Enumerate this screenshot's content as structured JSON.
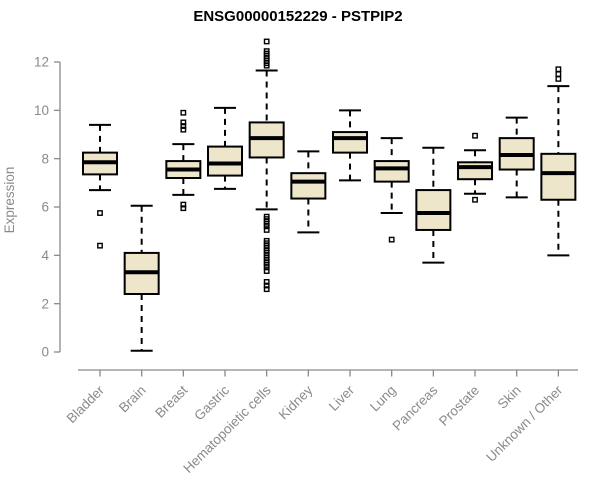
{
  "colors": {
    "box_fill": "#EDE6CA",
    "axis_gray": "#8a8a8a",
    "title_color": "#000000",
    "background": "#ffffff"
  },
  "chart_data": {
    "type": "boxplot",
    "title": "ENSG00000152229 - PSTPIP2",
    "xlabel": "",
    "ylabel": "Expression",
    "ylim": [
      0,
      12
    ],
    "yticks": [
      0,
      2,
      4,
      6,
      8,
      10,
      12
    ],
    "grid": "off",
    "categories": [
      "Bladder",
      "Brain",
      "Breast",
      "Gastric",
      "Hematopoietic cells",
      "Kidney",
      "Liver",
      "Lung",
      "Pancreas",
      "Prostate",
      "Skin",
      "Unknown / Other"
    ],
    "series": [
      {
        "name": "Bladder",
        "low": 6.7,
        "q1": 7.35,
        "median": 7.85,
        "q3": 8.25,
        "high": 9.4,
        "outliers": [
          5.75,
          4.4
        ]
      },
      {
        "name": "Brain",
        "low": 0.05,
        "q1": 2.4,
        "median": 3.3,
        "q3": 4.1,
        "high": 6.05,
        "outliers": []
      },
      {
        "name": "Breast",
        "low": 6.5,
        "q1": 7.2,
        "median": 7.55,
        "q3": 7.9,
        "high": 8.6,
        "outliers": [
          9.9,
          9.5,
          9.35,
          9.2,
          6.1,
          5.95
        ]
      },
      {
        "name": "Gastric",
        "low": 6.75,
        "q1": 7.3,
        "median": 7.8,
        "q3": 8.5,
        "high": 10.1,
        "outliers": []
      },
      {
        "name": "Hematopoietic cells",
        "low": 5.9,
        "q1": 8.05,
        "median": 8.85,
        "q3": 9.5,
        "high": 11.65,
        "outliers": [
          12.85,
          12.45,
          12.35,
          12.25,
          12.15,
          12.05,
          11.95,
          11.85,
          5.6,
          5.5,
          5.4,
          5.3,
          5.2,
          5.05,
          4.6,
          4.5,
          4.4,
          4.3,
          4.2,
          4.1,
          4.0,
          3.9,
          3.8,
          3.7,
          3.6,
          3.5,
          3.35,
          2.9,
          2.75,
          2.6
        ]
      },
      {
        "name": "Kidney",
        "low": 4.95,
        "q1": 6.35,
        "median": 7.05,
        "q3": 7.4,
        "high": 8.3,
        "outliers": []
      },
      {
        "name": "Liver",
        "low": 7.1,
        "q1": 8.25,
        "median": 8.85,
        "q3": 9.1,
        "high": 10.0,
        "outliers": []
      },
      {
        "name": "Lung",
        "low": 5.75,
        "q1": 7.05,
        "median": 7.6,
        "q3": 7.9,
        "high": 8.85,
        "outliers": [
          4.65
        ]
      },
      {
        "name": "Pancreas",
        "low": 3.7,
        "q1": 5.05,
        "median": 5.75,
        "q3": 6.7,
        "high": 8.45,
        "outliers": []
      },
      {
        "name": "Prostate",
        "low": 6.55,
        "q1": 7.15,
        "median": 7.65,
        "q3": 7.85,
        "high": 8.35,
        "outliers": [
          8.95,
          6.3
        ]
      },
      {
        "name": "Skin",
        "low": 6.4,
        "q1": 7.55,
        "median": 8.15,
        "q3": 8.85,
        "high": 9.7,
        "outliers": []
      },
      {
        "name": "Unknown / Other",
        "low": 4.0,
        "q1": 6.3,
        "median": 7.4,
        "q3": 8.2,
        "high": 11.0,
        "outliers": [
          11.7,
          11.5,
          11.3
        ]
      }
    ]
  }
}
